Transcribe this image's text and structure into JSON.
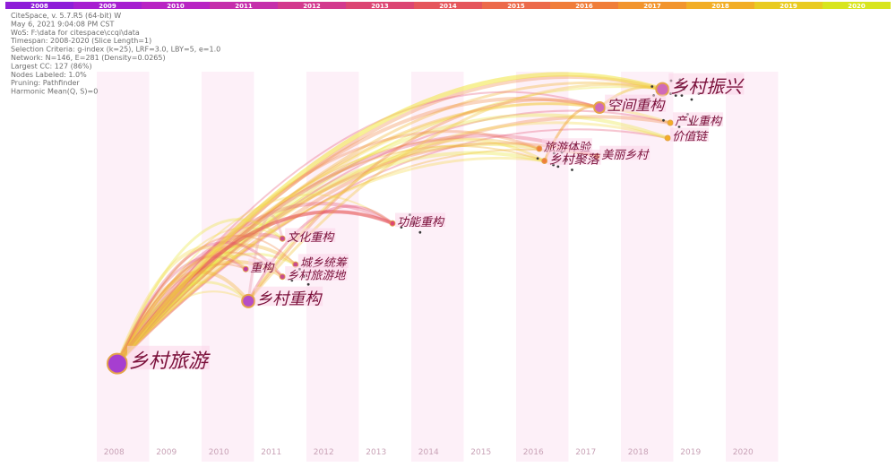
{
  "meta": [
    "CiteSpace, v. 5.7.R5 (64-bit) W",
    "May 6, 2021 9:04:08 PM CST",
    "WoS: F:\\data for citespace\\ccqi\\data",
    "Timespan: 2008-2020 (Slice Length=1)",
    "Selection Criteria: g-index (k=25), LRF=3.0, LBY=5, e=1.0",
    "Network: N=146, E=281 (Density=0.0265)",
    "Largest CC: 127 (86%)",
    "Nodes Labeled: 1.0%",
    "Pruning: Pathfinder",
    "Harmonic Mean(Q, S)=0"
  ],
  "timeline": {
    "years": [
      "2008",
      "2009",
      "2010",
      "2011",
      "2012",
      "2013",
      "2014",
      "2015",
      "2016",
      "2017",
      "2018",
      "2019",
      "2020"
    ],
    "colors": [
      "#8e1ed8",
      "#a61fd0",
      "#b824c3",
      "#c52fab",
      "#d33a8e",
      "#dc4673",
      "#e5565c",
      "#ec6a4b",
      "#f07e3a",
      "#f2952e",
      "#f2ae26",
      "#e9cb22",
      "#d8e51f"
    ]
  },
  "keywords": [
    {
      "id": "rural-tourism",
      "label": "乡村旅游",
      "year": 2008.05,
      "row": 0.84,
      "size": 22,
      "node": 11,
      "color": "#a63ed0"
    },
    {
      "id": "rural-restructuring",
      "label": "乡村重构",
      "year": 2010.55,
      "row": 0.635,
      "size": 18,
      "node": 7,
      "color": "#b54dc6"
    },
    {
      "id": "restructuring",
      "label": "重构",
      "year": 2010.5,
      "row": 0.53,
      "size": 13,
      "node": 3,
      "color": "#c03c9c"
    },
    {
      "id": "cultural-restructuring",
      "label": "文化重构",
      "year": 2011.2,
      "row": 0.43,
      "size": 13,
      "node": 3,
      "color": "#c84b8d"
    },
    {
      "id": "urban-rural",
      "label": "城乡统筹",
      "year": 2011.45,
      "row": 0.515,
      "size": 13,
      "node": 3,
      "color": "#c84b8d"
    },
    {
      "id": "rural-tourism-site",
      "label": "乡村旅游地",
      "year": 2011.2,
      "row": 0.555,
      "size": 13,
      "node": 3,
      "color": "#c84b8d"
    },
    {
      "id": "function-restructuring",
      "label": "功能重构",
      "year": 2013.3,
      "row": 0.38,
      "size": 13,
      "node": 3,
      "color": "#dc4673"
    },
    {
      "id": "tourism-experience",
      "label": "旅游体验",
      "year": 2016.1,
      "row": 0.135,
      "size": 13,
      "node": 3,
      "color": "#f07e3a"
    },
    {
      "id": "rural-settlement",
      "label": "乡村聚落",
      "year": 2016.2,
      "row": 0.175,
      "size": 14,
      "node": 3,
      "color": "#f07e3a"
    },
    {
      "id": "beautiful-village",
      "label": "美丽乡村",
      "year": 2017.2,
      "row": 0.16,
      "size": 13,
      "node": 3,
      "color": "#f2952e"
    },
    {
      "id": "spatial-restructuring",
      "label": "空间重构",
      "year": 2017.25,
      "row": 0.0,
      "size": 16,
      "node": 6,
      "color": "#d06ab8"
    },
    {
      "id": "industry-restructuring",
      "label": "产业重构",
      "year": 2018.6,
      "row": 0.05,
      "size": 13,
      "node": 3,
      "color": "#f2ae26"
    },
    {
      "id": "value-chain",
      "label": "价值链",
      "year": 2018.55,
      "row": 0.1,
      "size": 13,
      "node": 3,
      "color": "#f2ae26"
    },
    {
      "id": "rural-revitalization",
      "label": "乡村振兴",
      "year": 2018.45,
      "row": -0.06,
      "size": 20,
      "node": 7,
      "color": "#d06ab8"
    }
  ]
}
